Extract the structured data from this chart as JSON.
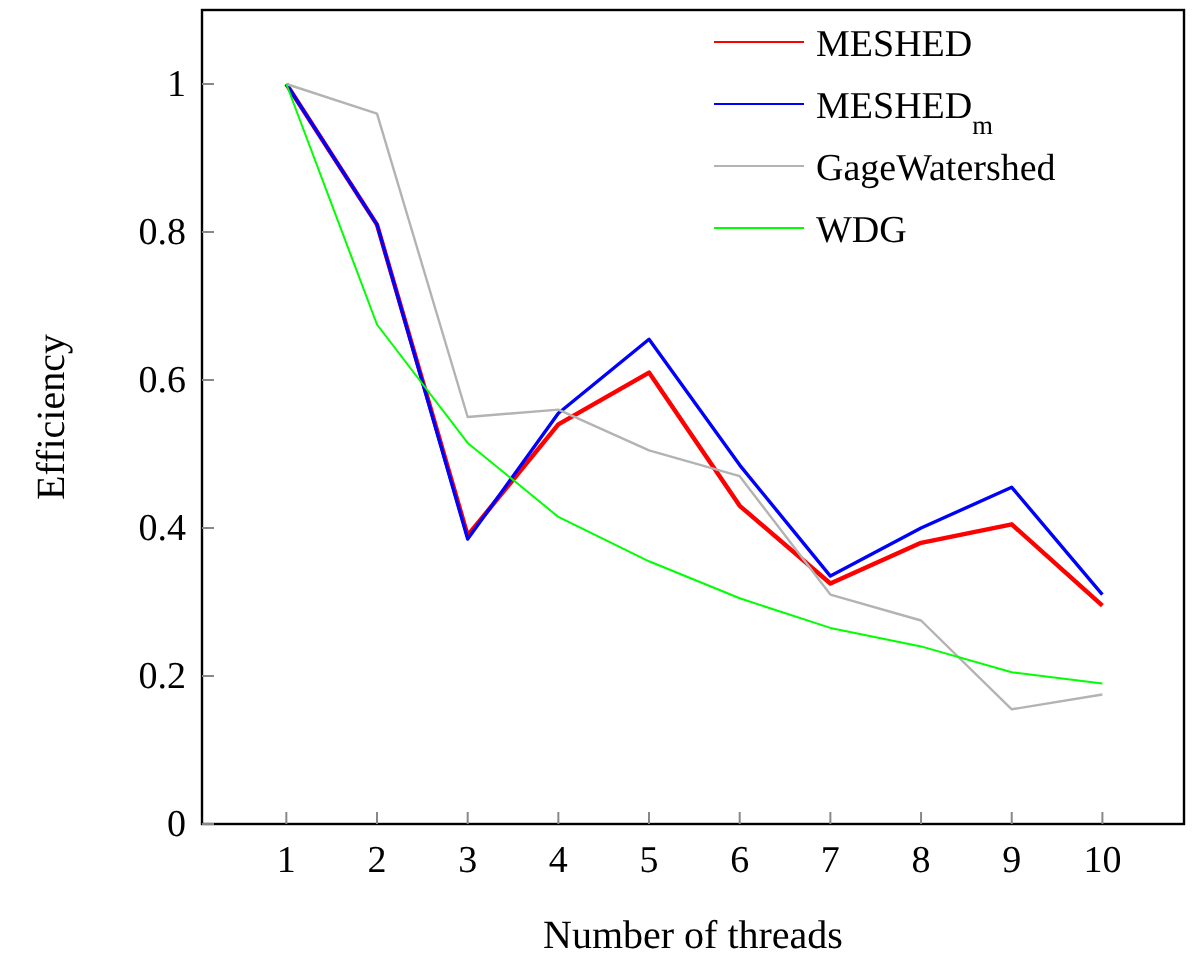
{
  "chart_data": {
    "type": "line",
    "xlabel": "Number of threads",
    "ylabel": "Efficiency",
    "x": [
      1,
      2,
      3,
      4,
      5,
      6,
      7,
      8,
      9,
      10
    ],
    "xlim": [
      0.07,
      10.9
    ],
    "ylim": [
      0,
      1.1
    ],
    "xticks": [
      1,
      2,
      3,
      4,
      5,
      6,
      7,
      8,
      9,
      10
    ],
    "yticks": [
      0,
      0.2,
      0.4,
      0.6,
      0.8,
      1
    ],
    "legend": "top right",
    "marker": "none",
    "line_style": "solid",
    "grid": false,
    "series": [
      {
        "name": "MESHED",
        "color": "#ff0000",
        "values": [
          1,
          0.81,
          0.39,
          0.54,
          0.61,
          0.43,
          0.325,
          0.38,
          0.405,
          0.295
        ]
      },
      {
        "name": "MESHED$_{m}$",
        "color": "#0000ff",
        "values": [
          1,
          0.81,
          0.385,
          0.555,
          0.655,
          0.485,
          0.335,
          0.4,
          0.455,
          0.31
        ]
      },
      {
        "name": "GageWatershed",
        "color": "#b3b3b3",
        "values": [
          1,
          0.96,
          0.55,
          0.56,
          0.505,
          0.47,
          0.31,
          0.275,
          0.155,
          0.175
        ]
      },
      {
        "name": "WDG",
        "color": "#00ff00",
        "values": [
          1,
          0.675,
          0.515,
          0.415,
          0.355,
          0.305,
          0.265,
          0.24,
          0.205,
          0.19
        ]
      }
    ]
  }
}
